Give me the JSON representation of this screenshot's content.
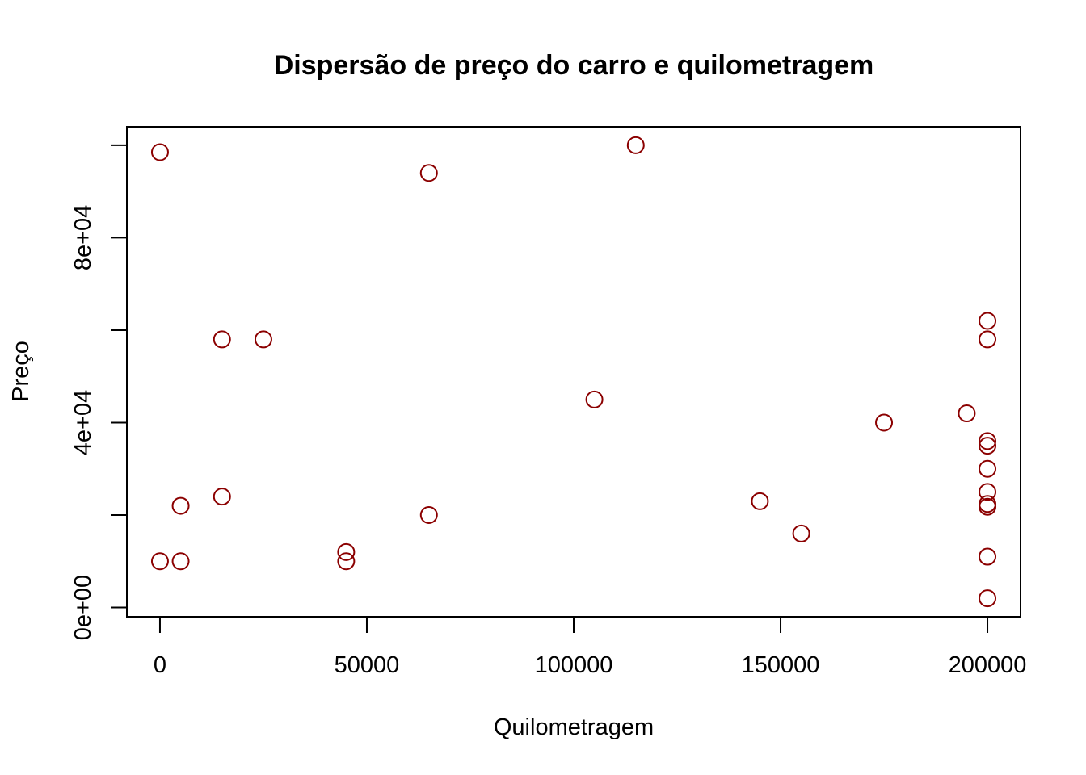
{
  "chart_data": {
    "type": "scatter",
    "title": "Dispersão de preço do carro e quilometragem",
    "xlabel": "Quilometragem",
    "ylabel": "Preço",
    "xlim": [
      -8000,
      208000
    ],
    "ylim": [
      -2000,
      104000
    ],
    "x_ticks": [
      0,
      50000,
      100000,
      150000,
      200000
    ],
    "x_tick_labels": [
      "0",
      "50000",
      "100000",
      "150000",
      "200000"
    ],
    "y_ticks": [
      0,
      20000,
      40000,
      60000,
      80000,
      100000
    ],
    "y_tick_labels": [
      "0e+00",
      "",
      "4e+04",
      "",
      "8e+04",
      ""
    ],
    "grid": false,
    "marker": "open-circle",
    "color": "#8B0000",
    "points": [
      {
        "x": 0,
        "y": 98500
      },
      {
        "x": 65000,
        "y": 94000
      },
      {
        "x": 115000,
        "y": 100000
      },
      {
        "x": 15000,
        "y": 58000
      },
      {
        "x": 25000,
        "y": 58000
      },
      {
        "x": 200000,
        "y": 62000
      },
      {
        "x": 200000,
        "y": 58000
      },
      {
        "x": 105000,
        "y": 45000
      },
      {
        "x": 175000,
        "y": 40000
      },
      {
        "x": 195000,
        "y": 42000
      },
      {
        "x": 200000,
        "y": 36000
      },
      {
        "x": 200000,
        "y": 35000
      },
      {
        "x": 200000,
        "y": 30000
      },
      {
        "x": 200000,
        "y": 25000
      },
      {
        "x": 200000,
        "y": 22400
      },
      {
        "x": 200000,
        "y": 21800
      },
      {
        "x": 200000,
        "y": 11000
      },
      {
        "x": 200000,
        "y": 2000
      },
      {
        "x": 5000,
        "y": 22000
      },
      {
        "x": 15000,
        "y": 24000
      },
      {
        "x": 65000,
        "y": 20000
      },
      {
        "x": 145000,
        "y": 23000
      },
      {
        "x": 155000,
        "y": 16000
      },
      {
        "x": 0,
        "y": 10000
      },
      {
        "x": 5000,
        "y": 10000
      },
      {
        "x": 45000,
        "y": 12000
      },
      {
        "x": 45000,
        "y": 10000
      }
    ]
  }
}
